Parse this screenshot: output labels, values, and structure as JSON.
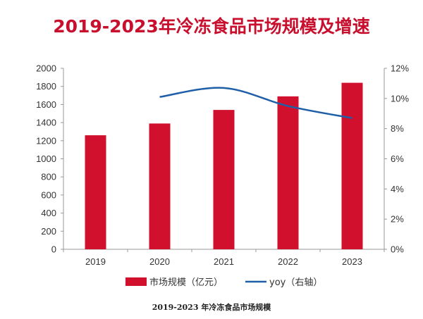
{
  "title": "2019-2023年冷冻食品市场规模及增速",
  "caption": "2019-2023 年冷冻食品市场规模",
  "chart_data": {
    "type": "bar",
    "categories": [
      "2019",
      "2020",
      "2021",
      "2022",
      "2023"
    ],
    "series": [
      {
        "name": "市场规模（亿元）",
        "type": "bar",
        "axis": "left",
        "values": [
          1260,
          1390,
          1540,
          1690,
          1840
        ],
        "color": "#d0102c"
      },
      {
        "name": "yoy（右轴）",
        "type": "line",
        "axis": "right",
        "values": [
          null,
          10.1,
          10.7,
          9.5,
          8.7
        ],
        "color": "#1f5fa8"
      }
    ],
    "y_left": {
      "min": 0,
      "max": 2000,
      "ticks": [
        "0",
        "200",
        "400",
        "600",
        "800",
        "1000",
        "1200",
        "1400",
        "1600",
        "1800",
        "2000"
      ]
    },
    "y_right": {
      "min": 0,
      "max": 12,
      "ticks": [
        "0%",
        "2%",
        "4%",
        "6%",
        "8%",
        "10%",
        "12%"
      ]
    },
    "grid": false,
    "legend_position": "bottom"
  }
}
